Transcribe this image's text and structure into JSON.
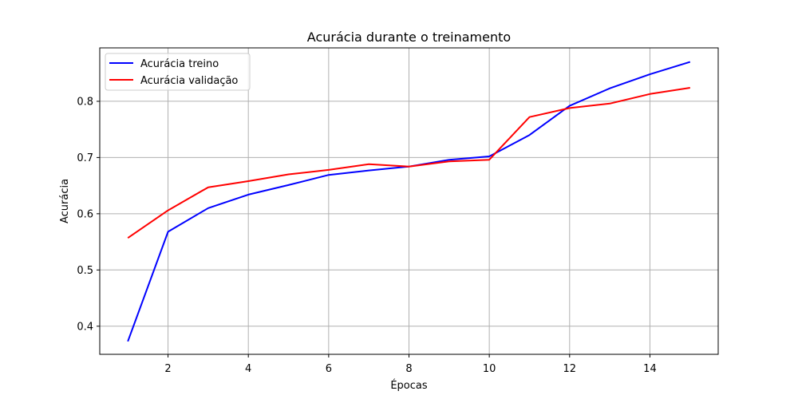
{
  "chart_data": {
    "type": "line",
    "title": "Acurácia durante o treinamento",
    "xlabel": "Épocas",
    "ylabel": "Acurácia",
    "xlim": [
      0.3,
      15.7
    ],
    "ylim": [
      0.35,
      0.895
    ],
    "xticks": [
      2,
      4,
      6,
      8,
      10,
      12,
      14
    ],
    "yticks": [
      0.4,
      0.5,
      0.6,
      0.7,
      0.8
    ],
    "grid": true,
    "legend_position": "top-left",
    "x": [
      1,
      2,
      3,
      4,
      5,
      6,
      7,
      8,
      9,
      10,
      11,
      12,
      13,
      14,
      15
    ],
    "series": [
      {
        "name": "Acurácia treino",
        "color": "#0000ff",
        "values": [
          0.373,
          0.568,
          0.61,
          0.634,
          0.651,
          0.669,
          0.677,
          0.684,
          0.696,
          0.702,
          0.74,
          0.792,
          0.823,
          0.848,
          0.87
        ]
      },
      {
        "name": "Acurácia validação",
        "color": "#ff0000",
        "values": [
          0.557,
          0.606,
          0.647,
          0.658,
          0.67,
          0.678,
          0.688,
          0.684,
          0.693,
          0.696,
          0.772,
          0.788,
          0.796,
          0.813,
          0.824
        ]
      }
    ]
  }
}
